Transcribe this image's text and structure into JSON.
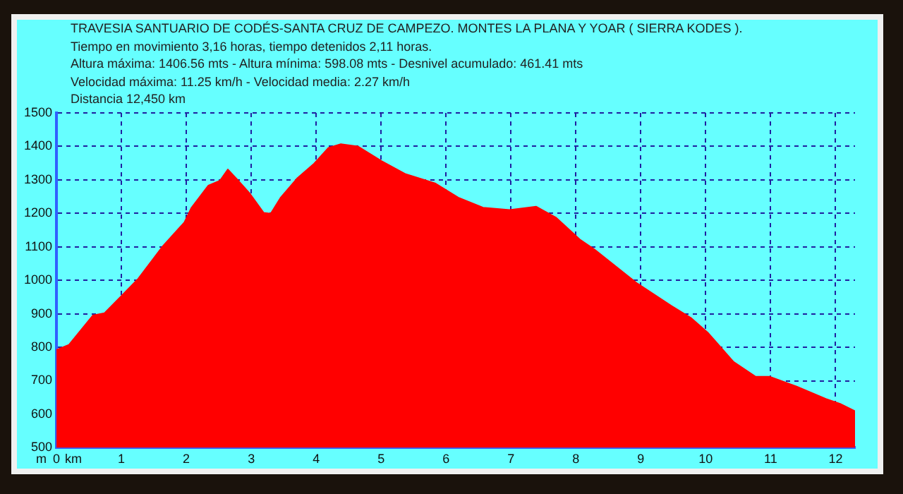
{
  "chart_data": {
    "type": "area",
    "title": "TRAVESIA SANTUARIO DE CODÉS-SANTA CRUZ DE CAMPEZO. MONTES LA PLANA Y YOAR ( SIERRA KODES ).",
    "annotations": [
      "Tiempo en movimiento 3,16 horas, tiempo detenidos 2,11  horas.",
      "Altura máxima: 1406.56 mts - Altura mínima: 598.08 mts - Desnivel acumulado: 461.41 mts",
      "Velocidad máxima: 11.25 km/h - Velocidad media: 2.27 km/h",
      "Distancia 12,450  km"
    ],
    "xlabel": "km",
    "ylabel": "m",
    "x": [
      0,
      0.19,
      0.56,
      0.74,
      1.0,
      1.26,
      1.63,
      1.97,
      2.08,
      2.34,
      2.52,
      2.64,
      2.78,
      2.97,
      3.19,
      3.3,
      3.45,
      3.71,
      3.97,
      4.19,
      4.38,
      4.64,
      5.01,
      5.38,
      5.83,
      6.2,
      6.57,
      6.98,
      7.39,
      7.69,
      8.06,
      8.28,
      8.95,
      9.47,
      9.77,
      10.03,
      10.43,
      10.77,
      10.99,
      11.4,
      11.85,
      12.07,
      12.3
    ],
    "values": [
      792,
      807,
      895,
      902,
      953,
      1005,
      1100,
      1173,
      1217,
      1283,
      1298,
      1331,
      1302,
      1261,
      1202,
      1199,
      1246,
      1305,
      1349,
      1396,
      1407,
      1400,
      1356,
      1317,
      1290,
      1246,
      1217,
      1210,
      1220,
      1188,
      1122,
      1093,
      990,
      924,
      888,
      844,
      756,
      712,
      712,
      683,
      646,
      631,
      609
    ],
    "color": "#ff0000",
    "xlim": [
      0,
      12.3
    ],
    "xticks": [
      0,
      1,
      2,
      3,
      4,
      5,
      6,
      7,
      8,
      9,
      10,
      11,
      12
    ],
    "ylim": [
      500,
      1500
    ],
    "yticks": [
      500,
      600,
      700,
      800,
      900,
      1000,
      1100,
      1200,
      1300,
      1400,
      1500
    ],
    "grid": true
  }
}
